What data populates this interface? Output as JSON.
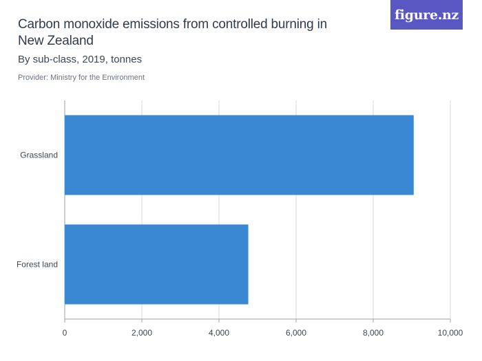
{
  "header": {
    "title": "Carbon monoxide emissions from controlled burning in New Zealand",
    "subtitle": "By sub-class, 2019, tonnes",
    "provider": "Provider: Ministry for the Environment",
    "logo_text": "figure.nz"
  },
  "colors": {
    "bar": "#3a87d4",
    "grid": "#d9d9d9",
    "logo_bg": "#5b57c2"
  },
  "chart_data": {
    "type": "bar",
    "orientation": "horizontal",
    "title": "Carbon monoxide emissions from controlled burning in New Zealand",
    "subtitle": "By sub-class, 2019, tonnes",
    "categories": [
      "Grassland",
      "Forest land"
    ],
    "values": [
      9050,
      4760
    ],
    "xlim": [
      0,
      10000
    ],
    "xticks": [
      0,
      2000,
      4000,
      6000,
      8000,
      10000
    ],
    "xtick_labels": [
      "0",
      "2,000",
      "4,000",
      "6,000",
      "8,000",
      "10,000"
    ],
    "grid": true,
    "legend": "none"
  }
}
